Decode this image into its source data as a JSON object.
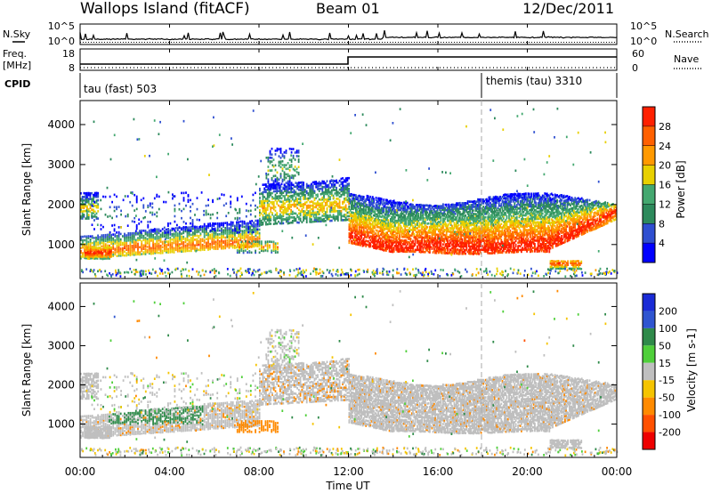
{
  "header": {
    "station": "Wallops Island (fitACF)",
    "beam": "Beam 01",
    "date": "12/Dec/2011"
  },
  "noise_panel": {
    "left_label": "N.Sky",
    "right_label": "N.Search",
    "left_ticks": [
      "10^5",
      "10^0"
    ],
    "right_ticks": [
      "10^5",
      "10^0"
    ]
  },
  "freq_panel": {
    "left_label_1": "Freq.",
    "left_label_2": "[MHz]",
    "right_label": "Nave",
    "left_ticks": [
      "18",
      "8"
    ],
    "right_ticks": [
      "60",
      "0"
    ]
  },
  "cpid_panel": {
    "label": "CPID",
    "segments": [
      {
        "text": "tau (fast) 503",
        "start_hour": 0
      },
      {
        "text": "themis (tau) 3310",
        "start_hour": 18
      }
    ]
  },
  "chart_data": [
    {
      "type": "heatmap",
      "panel": "power",
      "x_range_hours": [
        0,
        24
      ],
      "y_range_km": [
        150,
        4600
      ],
      "ylabel": "Slant Range [km]",
      "colorbar_label": "Power [dB]",
      "colorbar_ticks": [
        4,
        8,
        12,
        16,
        20,
        24,
        28
      ],
      "colorbar_range": [
        0,
        32
      ],
      "colors": [
        "#0000ff",
        "#2f4fd0",
        "#2d8a5c",
        "#44a870",
        "#e8d000",
        "#ff9900",
        "#ff6000",
        "#ff2000"
      ]
    },
    {
      "type": "heatmap",
      "panel": "velocity",
      "x_range_hours": [
        0,
        24
      ],
      "y_range_km": [
        150,
        4600
      ],
      "ylabel": "Slant Range [km]",
      "colorbar_label": "Velocity [m s-1]",
      "colorbar_ticks": [
        "200",
        "100",
        "50",
        "15",
        "-15",
        "-50",
        "-100",
        "-200"
      ],
      "colors": [
        "#1a2bd6",
        "#2f55d0",
        "#2f8a4a",
        "#4fcf3a",
        "#bfbfbf",
        "#f5c400",
        "#ff8a00",
        "#ff5000",
        "#ee0000"
      ]
    }
  ],
  "x_axis": {
    "label": "Time UT",
    "ticks": [
      "00:00",
      "04:00",
      "08:00",
      "12:00",
      "16:00",
      "20:00",
      "00:00"
    ]
  },
  "y_axis_ticks": [
    "1000",
    "2000",
    "3000",
    "4000"
  ]
}
